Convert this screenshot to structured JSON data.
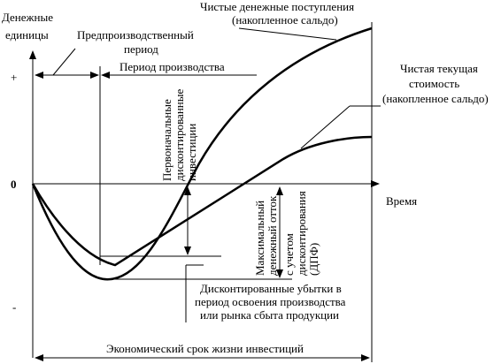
{
  "axis": {
    "y_label": [
      "Денежные",
      "единицы"
    ],
    "plus": "+",
    "zero": "0",
    "minus": "-",
    "x_label": "Время"
  },
  "periods": {
    "pre_production": [
      "Предпроизводственный",
      "период"
    ],
    "production": "Период производства",
    "lifetime": "Экономический срок жизни инвестиций"
  },
  "curves": {
    "net_cash_flow": [
      "Чистые денежные поступления",
      "(накопленное сальдо)"
    ],
    "npv": [
      "Чистая текущая",
      "стоимость",
      "(накопленное сальдо)"
    ]
  },
  "annotations": {
    "initial_investment": [
      "Первоначальные",
      "дисконтированные",
      "инвестиции"
    ],
    "max_outflow": [
      "Максимальный",
      "денежный отток"
    ],
    "discounted": [
      "с учетом",
      "дисконтирования",
      "(ДПФ)"
    ],
    "losses": [
      "Дисконтированные убытки в",
      "период освоения производства",
      "или рынка сбыта продукции"
    ]
  }
}
